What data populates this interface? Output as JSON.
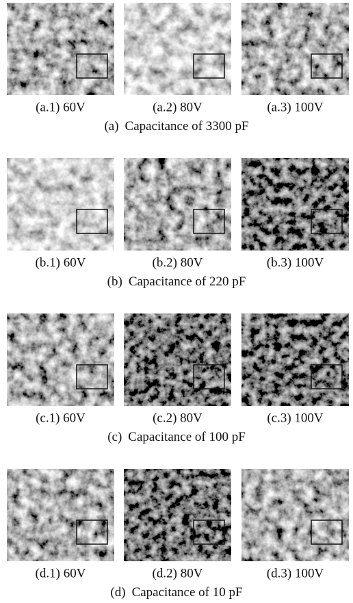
{
  "figure": {
    "groups": [
      {
        "label": "(a)",
        "caption": "Capacitance of 3300 pF",
        "panels": [
          "(a.1) 60V",
          "(a.2) 80V",
          "(a.3) 100V"
        ]
      },
      {
        "label": "(b)",
        "caption": "Capacitance of 220 pF",
        "panels": [
          "(b.1) 60V",
          "(b.2) 80V",
          "(b.3) 100V"
        ]
      },
      {
        "label": "(c)",
        "caption": "Capacitance of 100 pF",
        "panels": [
          "(c.1) 60V",
          "(c.2) 80V",
          "(c.3) 100V"
        ]
      },
      {
        "label": "(d)",
        "caption": "Capacitance of 10 pF",
        "panels": [
          "(d.1) 60V",
          "(d.2) 80V",
          "(d.3) 100V"
        ]
      }
    ]
  }
}
